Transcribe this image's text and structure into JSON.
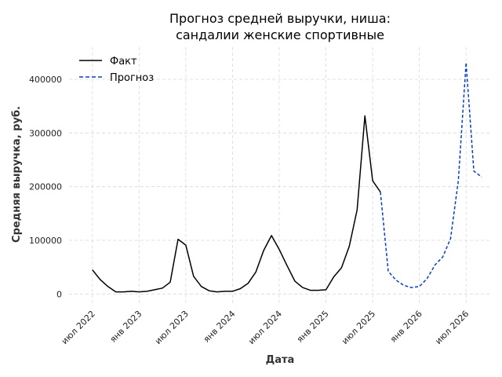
{
  "chart_data": {
    "type": "line",
    "title": [
      "Прогноз средней выручки, ниша:",
      "сандалии женские спортивные"
    ],
    "xlabel": "Дата",
    "ylabel": "Средняя выручка, руб.",
    "x_ticks": [
      {
        "date": "2022-07",
        "label": "июл 2022"
      },
      {
        "date": "2023-01",
        "label": "янв 2023"
      },
      {
        "date": "2023-07",
        "label": "июл 2023"
      },
      {
        "date": "2024-01",
        "label": "янв 2024"
      },
      {
        "date": "2024-07",
        "label": "июл 2024"
      },
      {
        "date": "2025-01",
        "label": "янв 2025"
      },
      {
        "date": "2025-07",
        "label": "июл 2025"
      },
      {
        "date": "2026-01",
        "label": "янв 2026"
      },
      {
        "date": "2026-07",
        "label": "июл 2026"
      }
    ],
    "y_ticks": [
      {
        "value": 0,
        "label": "0"
      },
      {
        "value": 100000,
        "label": "100000"
      },
      {
        "value": 200000,
        "label": "200000"
      },
      {
        "value": 300000,
        "label": "300000"
      },
      {
        "value": 400000,
        "label": "400000"
      }
    ],
    "xlim": [
      "2022-04",
      "2026-10"
    ],
    "ylim": [
      -20000,
      460000
    ],
    "grid": true,
    "legend_position": "top-left",
    "series": [
      {
        "name": "Факт",
        "color": "#000000",
        "style": "solid",
        "points": [
          [
            "2022-07",
            45000
          ],
          [
            "2022-08",
            27000
          ],
          [
            "2022-09",
            14000
          ],
          [
            "2022-10",
            4000
          ],
          [
            "2022-11",
            4000
          ],
          [
            "2022-12",
            5000
          ],
          [
            "2023-01",
            4000
          ],
          [
            "2023-02",
            5000
          ],
          [
            "2023-03",
            8000
          ],
          [
            "2023-04",
            11000
          ],
          [
            "2023-05",
            22000
          ],
          [
            "2023-06",
            102000
          ],
          [
            "2023-07",
            91000
          ],
          [
            "2023-08",
            33000
          ],
          [
            "2023-09",
            14000
          ],
          [
            "2023-10",
            6000
          ],
          [
            "2023-11",
            4000
          ],
          [
            "2023-12",
            5000
          ],
          [
            "2024-01",
            5000
          ],
          [
            "2024-02",
            10000
          ],
          [
            "2024-03",
            20000
          ],
          [
            "2024-04",
            41000
          ],
          [
            "2024-05",
            81000
          ],
          [
            "2024-06",
            109000
          ],
          [
            "2024-07",
            83000
          ],
          [
            "2024-08",
            53000
          ],
          [
            "2024-09",
            24000
          ],
          [
            "2024-10",
            12000
          ],
          [
            "2024-11",
            7000
          ],
          [
            "2024-12",
            7000
          ],
          [
            "2025-01",
            8000
          ],
          [
            "2025-02",
            32000
          ],
          [
            "2025-03",
            49000
          ],
          [
            "2025-04",
            89000
          ],
          [
            "2025-05",
            157000
          ],
          [
            "2025-06",
            332000
          ],
          [
            "2025-07",
            211000
          ],
          [
            "2025-08",
            190000
          ]
        ]
      },
      {
        "name": "Прогноз",
        "color": "#0a3ec7",
        "style": "dashed",
        "points": [
          [
            "2025-08",
            190000
          ],
          [
            "2025-09",
            42000
          ],
          [
            "2025-10",
            26000
          ],
          [
            "2025-11",
            16000
          ],
          [
            "2025-12",
            12000
          ],
          [
            "2026-01",
            14000
          ],
          [
            "2026-02",
            29000
          ],
          [
            "2026-03",
            54000
          ],
          [
            "2026-04",
            69000
          ],
          [
            "2026-05",
            103000
          ],
          [
            "2026-06",
            211000
          ],
          [
            "2026-07",
            431000
          ],
          [
            "2026-08",
            229000
          ],
          [
            "2026-09",
            218000
          ]
        ]
      }
    ]
  }
}
